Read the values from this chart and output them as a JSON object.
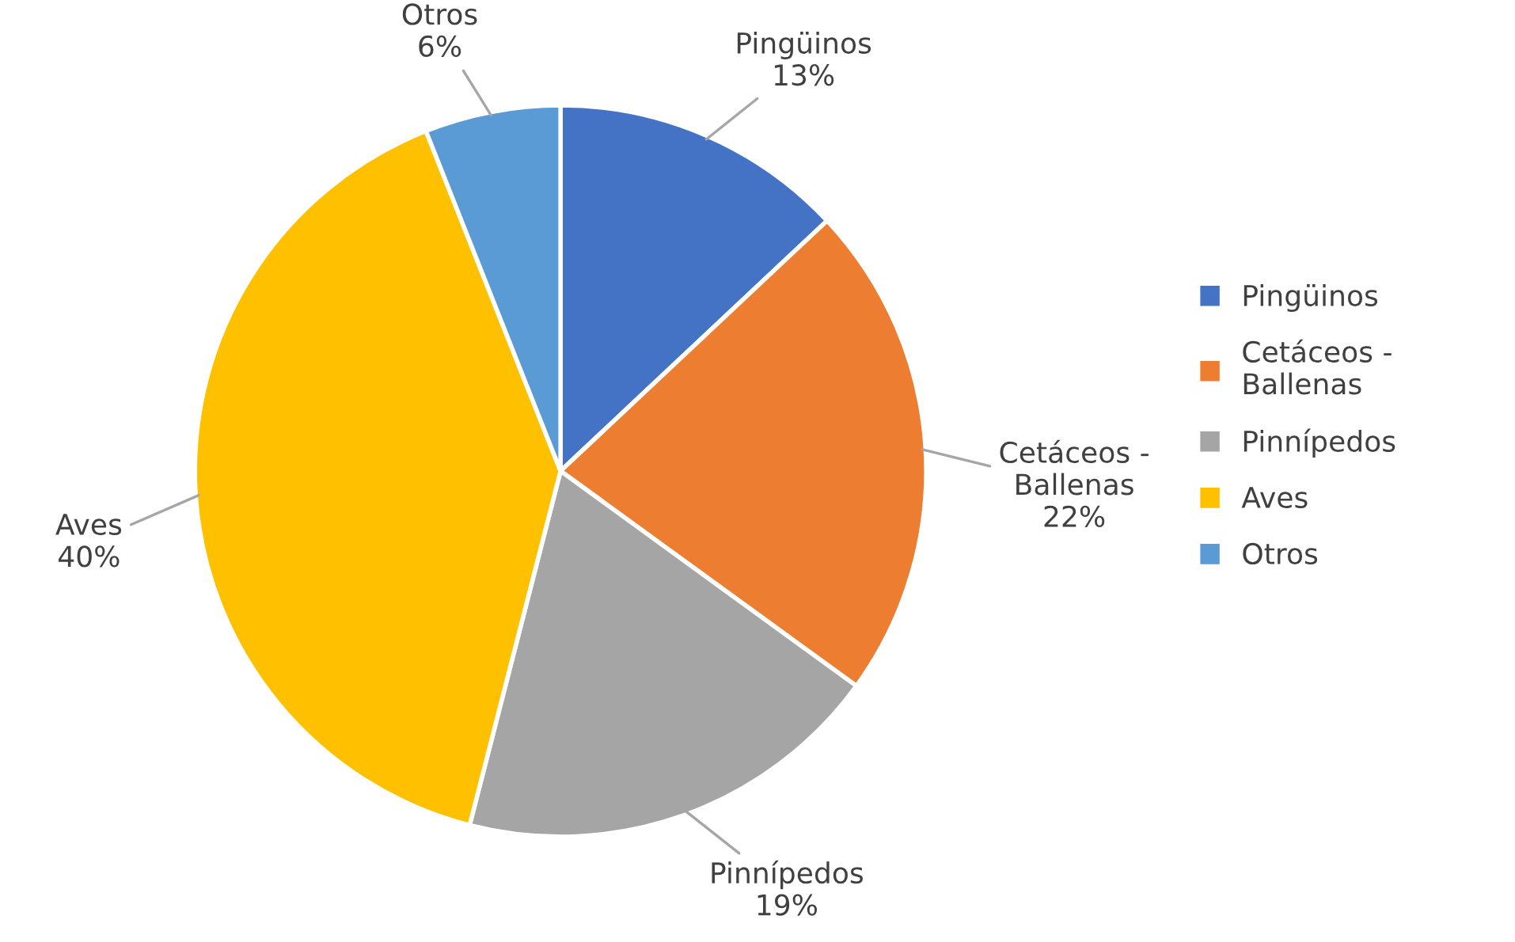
{
  "chart_data": {
    "type": "pie",
    "categories": [
      "Pingüinos",
      "Cetáceos -\nBallenas",
      "Pinnípedos",
      "Aves",
      "Otros"
    ],
    "values": [
      13,
      22,
      19,
      40,
      6
    ],
    "value_labels": [
      "13%",
      "22%",
      "19%",
      "40%",
      "6%"
    ],
    "colors": [
      "#4472c4",
      "#ed7d31",
      "#a5a5a5",
      "#ffc000",
      "#5b9bd5"
    ],
    "legend": "right"
  }
}
